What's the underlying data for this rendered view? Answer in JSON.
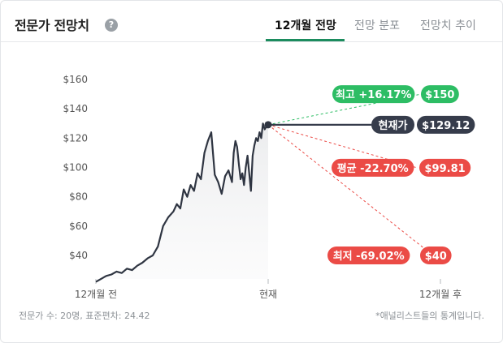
{
  "header": {
    "title": "전문가 전망치",
    "help_icon": "?",
    "tabs": [
      {
        "label": "12개월 전망",
        "active": true
      },
      {
        "label": "전망 분포",
        "active": false
      },
      {
        "label": "전망치 추이",
        "active": false
      }
    ]
  },
  "footer": {
    "left": "전문가 수: 20명, 표준편차: 24.42",
    "right": "*애널리스트들의 통계입니다."
  },
  "colors": {
    "accent": "#1c8c5e",
    "high": "#2dbd64",
    "current": "#363c4b",
    "avg": "#eb4b46",
    "low": "#eb4b46"
  },
  "chart_data": {
    "type": "line",
    "ylim": [
      30,
      165
    ],
    "y_ticks": [
      "$160",
      "$140",
      "$120",
      "$100",
      "$80",
      "$60",
      "$40"
    ],
    "y_tick_values": [
      160,
      140,
      120,
      100,
      80,
      60,
      40
    ],
    "x_ticks": [
      "12개월 전",
      "현재",
      "12개월 후"
    ],
    "x_tick_positions": [
      0,
      1,
      2
    ],
    "series": [
      {
        "values_x": [
          0,
          0.03,
          0.06,
          0.09,
          0.12,
          0.15,
          0.18,
          0.21,
          0.24,
          0.27,
          0.3,
          0.33,
          0.36,
          0.39,
          0.42,
          0.45,
          0.47,
          0.49,
          0.51,
          0.53,
          0.55,
          0.57,
          0.59,
          0.61,
          0.63,
          0.65,
          0.67,
          0.69,
          0.71,
          0.73,
          0.75,
          0.77,
          0.79,
          0.8,
          0.81,
          0.82,
          0.83,
          0.84,
          0.85,
          0.86,
          0.87,
          0.88,
          0.89,
          0.9,
          0.91,
          0.92,
          0.93,
          0.94,
          0.95,
          0.96,
          0.97,
          0.98,
          0.99,
          1.0
        ],
        "values_y": [
          22,
          24,
          26,
          27,
          29,
          28,
          31,
          30,
          33,
          35,
          38,
          40,
          46,
          60,
          66,
          70,
          75,
          72,
          85,
          80,
          88,
          84,
          96,
          92,
          110,
          118,
          124,
          95,
          90,
          82,
          94,
          98,
          90,
          110,
          118,
          114,
          102,
          92,
          96,
          88,
          100,
          108,
          96,
          84,
          108,
          115,
          120,
          118,
          124,
          120,
          130,
          126,
          128,
          129.12
        ]
      }
    ],
    "targets": [
      {
        "label": "최고 +16.17%",
        "value_label": "$150",
        "value": 150,
        "kind": "high"
      },
      {
        "label": "현재가",
        "value_label": "$129.12",
        "value": 129.12,
        "kind": "current"
      },
      {
        "label": "평균 -22.70%",
        "value_label": "$99.81",
        "value": 99.81,
        "kind": "avg"
      },
      {
        "label": "최저 -69.02%",
        "value_label": "$40",
        "value": 40,
        "kind": "low"
      }
    ]
  }
}
